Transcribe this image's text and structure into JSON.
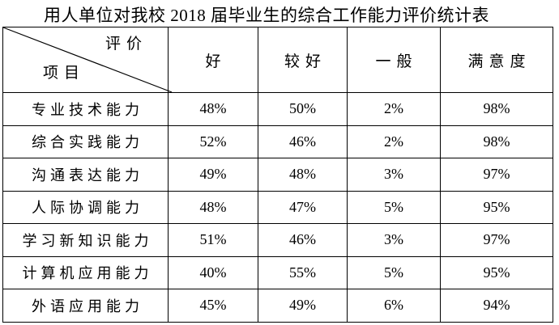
{
  "title": "用人单位对我校 2018 届毕业生的综合工作能力评价统计表",
  "table": {
    "corner": {
      "top_right": "评价",
      "bottom_left": "项目"
    },
    "columns": [
      "好",
      "较好",
      "一般",
      "满意度"
    ],
    "rows": [
      {
        "label": "专业技术能力",
        "values": [
          "48%",
          "50%",
          "2%",
          "98%"
        ]
      },
      {
        "label": "综合实践能力",
        "values": [
          "52%",
          "46%",
          "2%",
          "98%"
        ]
      },
      {
        "label": "沟通表达能力",
        "values": [
          "49%",
          "48%",
          "3%",
          "97%"
        ]
      },
      {
        "label": "人际协调能力",
        "values": [
          "48%",
          "47%",
          "5%",
          "95%"
        ]
      },
      {
        "label": "学习新知识能力",
        "values": [
          "51%",
          "46%",
          "3%",
          "97%"
        ]
      },
      {
        "label": "计算机应用能力",
        "values": [
          "40%",
          "55%",
          "5%",
          "95%"
        ]
      },
      {
        "label": "外语应用能力",
        "values": [
          "45%",
          "49%",
          "6%",
          "94%"
        ]
      }
    ]
  },
  "chart_data": {
    "type": "table",
    "title": "用人单位对我校 2018 届毕业生的综合工作能力评价统计表",
    "corner_header_top": "评价",
    "corner_header_bottom": "项目",
    "categories": [
      "专业技术能力",
      "综合实践能力",
      "沟通表达能力",
      "人际协调能力",
      "学习新知识能力",
      "计算机应用能力",
      "外语应用能力"
    ],
    "series": [
      {
        "name": "好",
        "values": [
          48,
          52,
          49,
          48,
          51,
          40,
          45
        ]
      },
      {
        "name": "较好",
        "values": [
          50,
          46,
          48,
          47,
          46,
          55,
          49
        ]
      },
      {
        "name": "一般",
        "values": [
          2,
          2,
          3,
          5,
          3,
          5,
          6
        ]
      },
      {
        "name": "满意度",
        "values": [
          98,
          98,
          97,
          95,
          97,
          95,
          94
        ]
      }
    ],
    "unit": "%"
  },
  "colors": {
    "background": "#ffffff",
    "text": "#000000",
    "border": "#000000"
  }
}
